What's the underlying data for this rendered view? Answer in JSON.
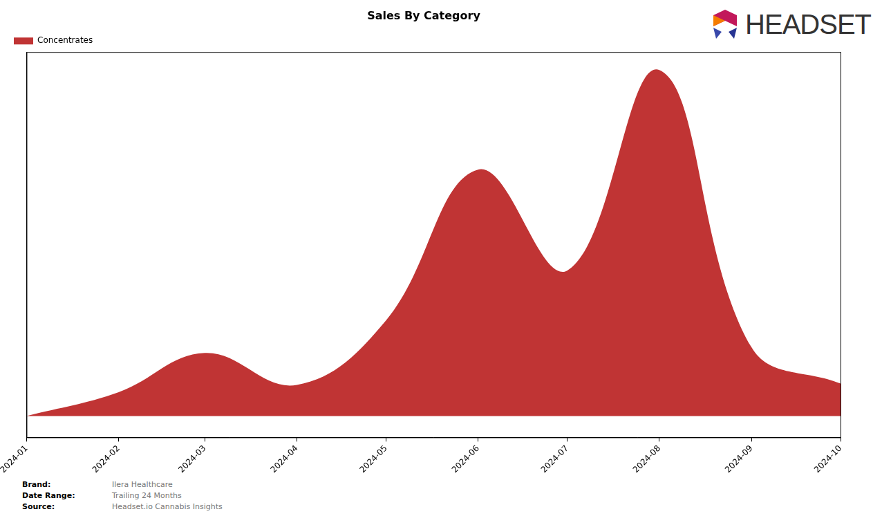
{
  "chart_data": {
    "type": "area",
    "title": "Sales By Category",
    "x": [
      "2024-01",
      "2024-02",
      "2024-03",
      "2024-04",
      "2024-05",
      "2024-06",
      "2024-07",
      "2024-08",
      "2024-09",
      "2024-10"
    ],
    "series": [
      {
        "name": "Concentrates",
        "color": "#c03434",
        "values": [
          0,
          36,
          95,
          47,
          144,
          371,
          219,
          521,
          104,
          49
        ]
      }
    ],
    "xlim": [
      "2024-01",
      "2024-10"
    ],
    "xticks": [
      "2024-01",
      "2024-02",
      "2024-03",
      "2024-04",
      "2024-05",
      "2024-06",
      "2024-07",
      "2024-08",
      "2024-09",
      "2024-10"
    ],
    "ylim": [
      -32,
      548
    ],
    "grid": false,
    "legend": "upper left",
    "tick_labels": "x"
  },
  "logo": "HEADSET",
  "footer": [
    {
      "label": "Brand:",
      "value": "Ilera Healthcare"
    },
    {
      "label": "Date Range:",
      "value": "Trailing 24 Months"
    },
    {
      "label": "Source:",
      "value": "Headset.io Cannabis Insights"
    }
  ]
}
